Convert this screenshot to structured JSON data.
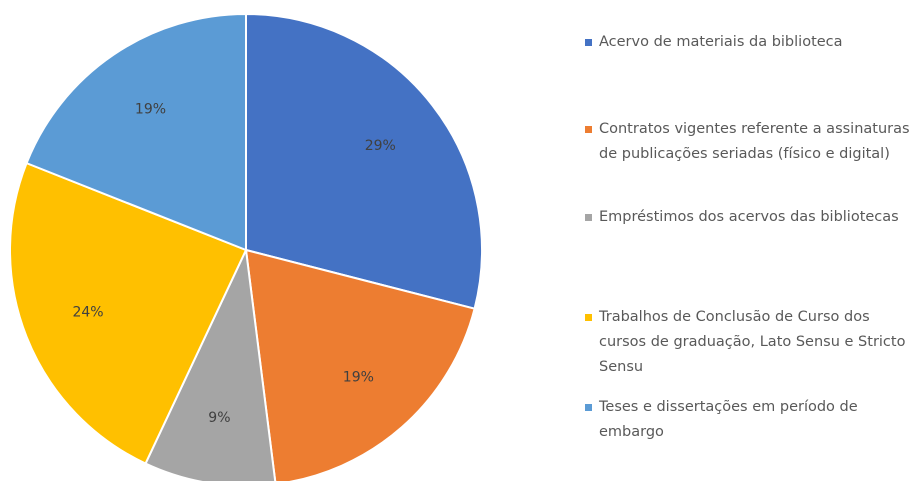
{
  "chart_data": {
    "type": "pie",
    "categories": [
      "Acervo de materiais da biblioteca",
      "Contratos vigentes referente a assinaturas de publicações seriadas (físico e digital)",
      "Empréstimos dos acervos das bibliotecas",
      "Trabalhos de Conclusão de Curso dos cursos de graduação, Lato Sensu e Stricto Sensu",
      "Teses e dissertações em período de embargo"
    ],
    "values": [
      29,
      19,
      9,
      24,
      19
    ],
    "value_labels": [
      "29%",
      "19%",
      "9%",
      "24%",
      "19%"
    ],
    "colors": [
      "#4472c4",
      "#ed7d31",
      "#a5a5a5",
      "#ffc000",
      "#5b9bd5"
    ],
    "legend": "right"
  }
}
